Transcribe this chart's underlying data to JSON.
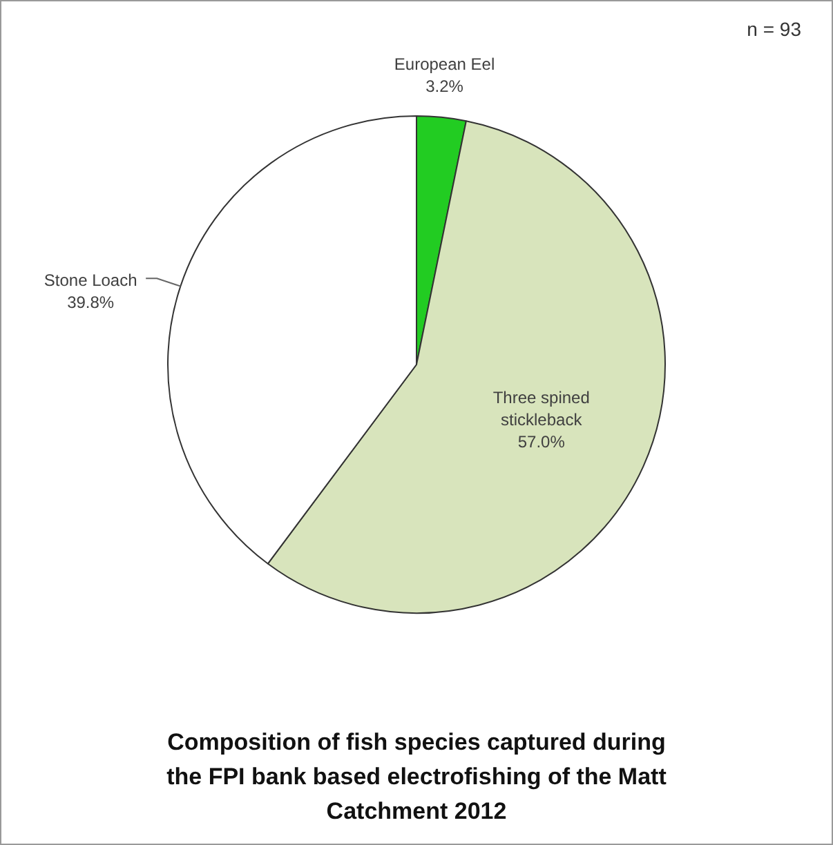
{
  "chart_data": {
    "type": "pie",
    "title": "Composition of fish species captured during  the FPI bank based electrofishing of the Matt Catchment 2012",
    "categories": [
      "European Eel",
      "Three spined stickleback",
      "Stone Loach"
    ],
    "values": [
      3.2,
      57.0,
      39.8
    ],
    "value_labels": [
      "3.2%",
      "57.0%",
      "39.8%"
    ],
    "colors": [
      "#22cc22",
      "#d8e4bc",
      "#ffffff"
    ],
    "legend": false,
    "annotations": [
      "n = 93"
    ]
  }
}
